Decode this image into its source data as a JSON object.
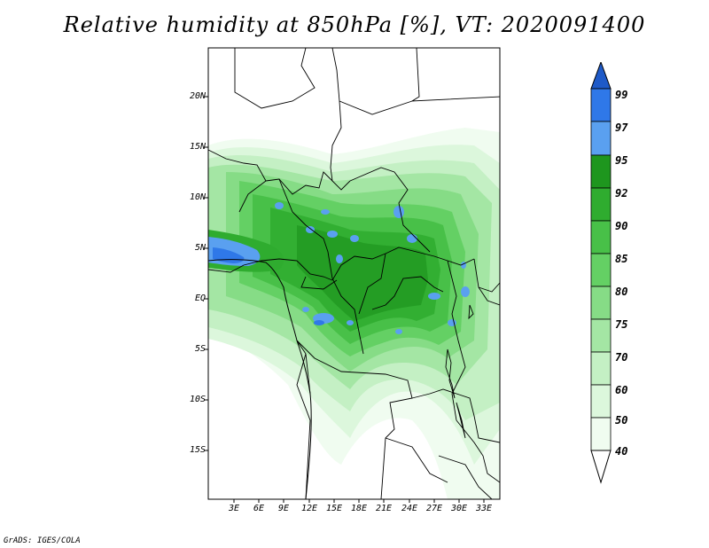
{
  "title": "Relative humidity at 850hPa [%], VT: 2020091400",
  "credit": "GrADS: IGES/COLA",
  "map": {
    "lat_labels": [
      "20N",
      "15N",
      "10N",
      "5N",
      "EQ",
      "5S",
      "10S",
      "15S"
    ],
    "lon_labels": [
      "3E",
      "6E",
      "9E",
      "12E",
      "15E",
      "18E",
      "21E",
      "24E",
      "27E",
      "30E",
      "33E"
    ]
  },
  "colorbar": {
    "labels": [
      "99",
      "97",
      "95",
      "92",
      "90",
      "85",
      "80",
      "75",
      "70",
      "60",
      "50",
      "40"
    ],
    "colors": {
      "c40": "#f0fcf0",
      "c50": "#dcf7dc",
      "c60": "#c4f0c4",
      "c70": "#a4e6a4",
      "c75": "#86dc86",
      "c80": "#64d064",
      "c85": "#48c048",
      "c90": "#2fac2f",
      "c92": "#1e961e",
      "c95": "#5aa0f0",
      "c97": "#2f78e8",
      "c99": "#1e5ac8"
    }
  }
}
